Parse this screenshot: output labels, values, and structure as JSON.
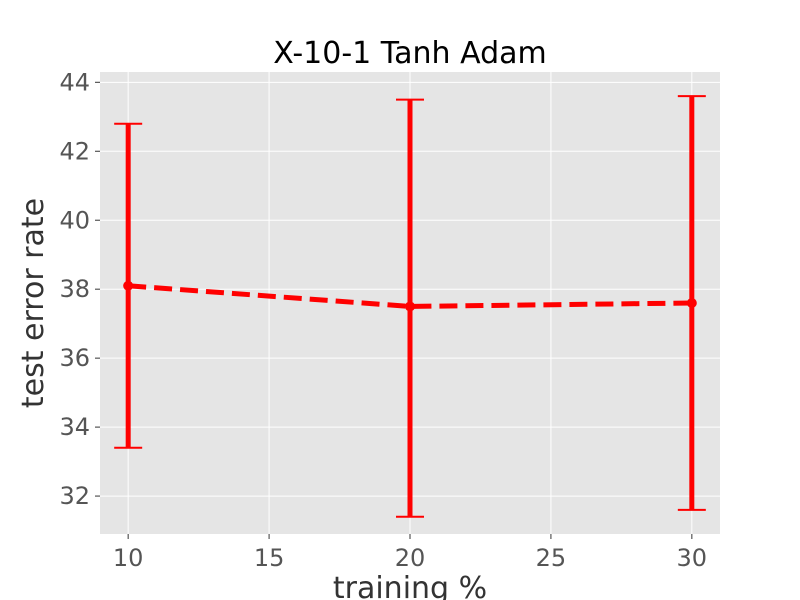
{
  "chart_data": {
    "type": "line",
    "title": "X-10-1 Tanh Adam",
    "xlabel": "training %",
    "ylabel": "test error rate",
    "xlim": [
      9,
      31
    ],
    "ylim": [
      30.9,
      44.3
    ],
    "xticks": [
      10,
      15,
      20,
      25,
      30
    ],
    "yticks": [
      32,
      34,
      36,
      38,
      40,
      42,
      44
    ],
    "grid": true,
    "series": [
      {
        "x": [
          10,
          20,
          30
        ],
        "y": [
          38.1,
          37.5,
          37.6
        ],
        "err_low": [
          33.4,
          31.4,
          31.6
        ],
        "err_high": [
          42.8,
          43.5,
          43.6
        ],
        "line_style": "dashed",
        "color": "#ff0000"
      }
    ],
    "colors": {
      "plot_background": "#e5e5e5",
      "grid": "#ffffff",
      "series": "#ff0000"
    }
  }
}
